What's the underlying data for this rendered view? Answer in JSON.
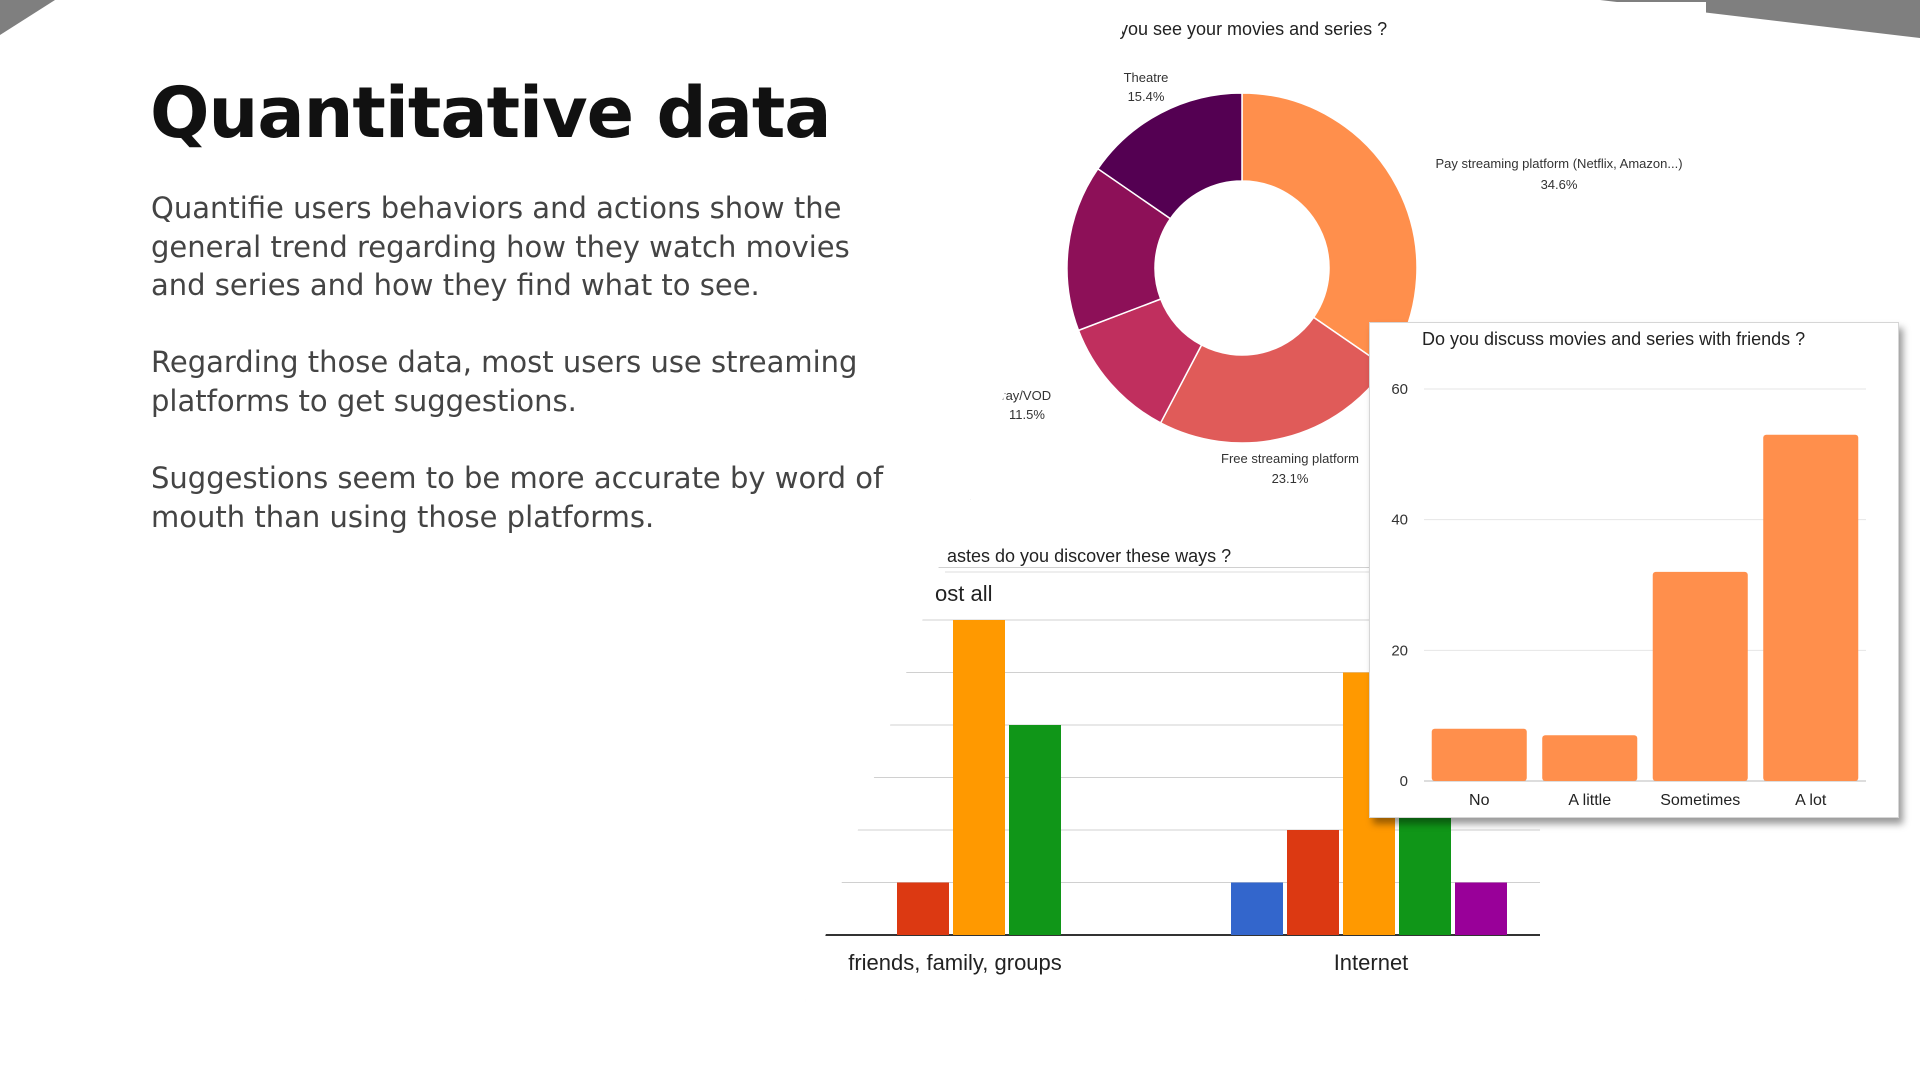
{
  "slide": {
    "title": "Quantitative data",
    "paragraphs": [
      "Quantifie users behaviors and actions show the general trend regarding how they watch movies and series and how they find what to see.",
      "Regarding those data, most users use streaming platforms to get suggestions.",
      "Suggestions seem to be more accurate by word of mouth than using those platforms."
    ],
    "accent_color": "#7f7f7f"
  },
  "chart_data": [
    {
      "type": "pie",
      "title": "you see your movies and series ?",
      "donut": true,
      "slices": [
        {
          "label": "Pay streaming platform (Netflix, Amazon...)",
          "value": 34.6,
          "display": "34.6%",
          "color": "#ff8f4c"
        },
        {
          "label": "Free streaming platform",
          "value": 23.1,
          "display": "23.1%",
          "color": "#e05b59"
        },
        {
          "label": "Blue-ray/VOD",
          "value": 11.5,
          "display": "11.5%",
          "color": "#c02f5e"
        },
        {
          "label": "",
          "value": 15.4,
          "display": "",
          "color": "#8d1058"
        },
        {
          "label": "Theatre",
          "value": 15.4,
          "display": "15.4%",
          "color": "#540052"
        }
      ],
      "visible_labels": {
        "theatre": "Theatre",
        "theatre_pct": "15.4%",
        "pay": "Pay streaming platform (Netflix, Amazon...)",
        "pay_pct": "34.6%",
        "free": "Free streaming platform",
        "free_pct": "23.1%",
        "bluray": "Blue-ray/VOD",
        "bluray_pct": "11.5%"
      }
    },
    {
      "type": "bar",
      "title": "astes do you discover these ways ?",
      "legend_visible": "ost all",
      "categories": [
        "friends, family, groups",
        "Internet"
      ],
      "series": [
        {
          "color": "#3366cc",
          "values": [
            0,
            1
          ]
        },
        {
          "color": "#dc3912",
          "values": [
            1,
            2
          ]
        },
        {
          "color": "#ff9900",
          "values": [
            6,
            5
          ]
        },
        {
          "color": "#109618",
          "values": [
            4,
            4
          ]
        },
        {
          "color": "#990099",
          "values": [
            0,
            1
          ]
        }
      ],
      "category_labels_visible": [
        "friends, family, groups",
        "Internet"
      ]
    },
    {
      "type": "bar",
      "title": "Do you discuss movies and series with friends ?",
      "categories": [
        "No",
        "A little",
        "Sometimes",
        "A lot"
      ],
      "values": [
        8,
        7,
        32,
        53
      ],
      "ylim": [
        0,
        60
      ],
      "yticks": [
        0,
        20,
        40,
        60
      ],
      "ytick_labels": [
        "0",
        "20",
        "40",
        "60"
      ],
      "color": "#ff8f4c",
      "grid": true
    }
  ]
}
